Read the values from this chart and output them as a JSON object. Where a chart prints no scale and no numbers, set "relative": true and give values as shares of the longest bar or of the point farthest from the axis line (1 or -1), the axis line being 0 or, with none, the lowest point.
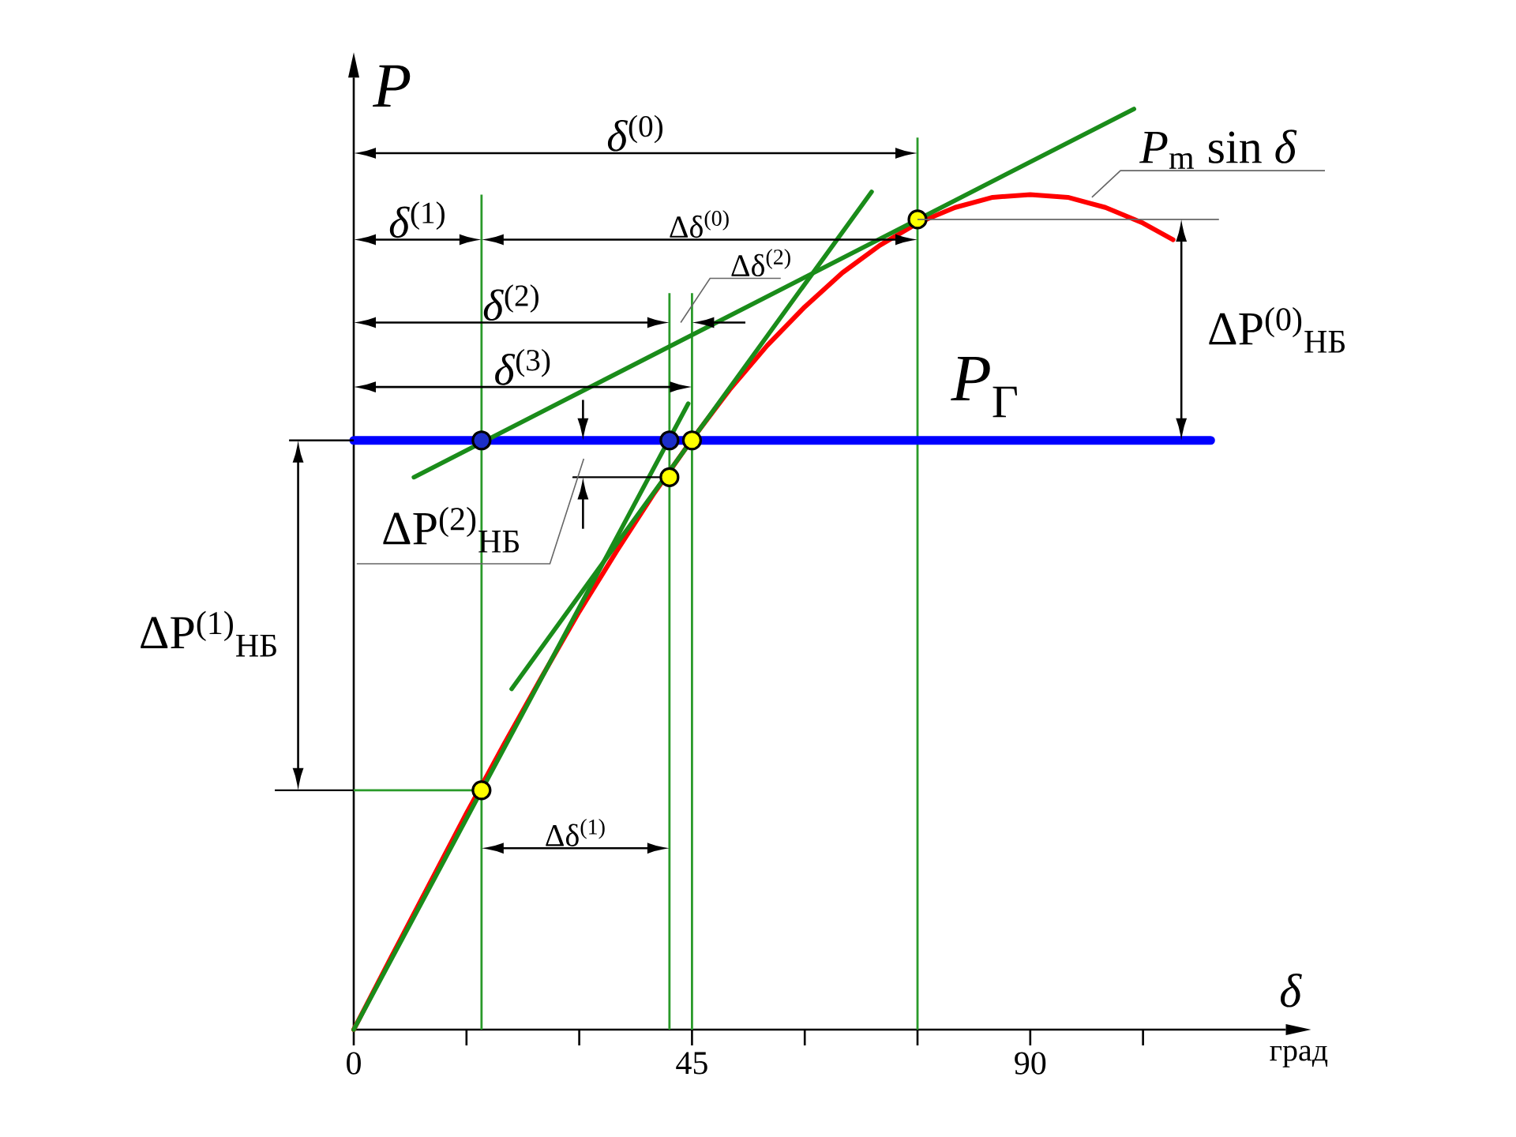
{
  "chart_data": {
    "type": "line",
    "relative": true,
    "xlabel": "δ",
    "ylabel": "P",
    "xlim": [
      0,
      124
    ],
    "xticks": [
      0,
      {
        "value": 15,
        "label": null
      },
      {
        "value": 30,
        "label": null
      },
      45,
      {
        "value": 60,
        "label": null
      },
      {
        "value": 75,
        "label": null
      },
      90,
      {
        "value": 105,
        "label": null
      }
    ],
    "series": [
      {
        "name": "*P*$_{m}$ sin *δ*",
        "color": "#ff0000",
        "x": [
          0,
          5,
          10,
          15,
          20,
          25,
          30,
          35,
          40,
          45,
          50,
          55,
          60,
          65,
          70,
          75,
          80,
          85,
          90,
          95,
          100,
          105,
          109
        ],
        "values": [
          0,
          0.079,
          0.157,
          0.235,
          0.31,
          0.383,
          0.454,
          0.52,
          0.583,
          0.641,
          0.695,
          0.743,
          0.785,
          0.822,
          0.852,
          0.876,
          0.893,
          0.904,
          0.907,
          0.904,
          0.893,
          0.876,
          0.858
        ]
      },
      {
        "name": "*P*$_{Г}$",
        "color": "#0000ff",
        "x": [
          0,
          114
        ],
        "values": [
          0.64,
          0.64
        ]
      },
      {
        "color": "#1a8c1a",
        "x": [
          8,
          103.8
        ],
        "values": [
          0.6,
          1
        ]
      },
      {
        "color": "#1a8c1a",
        "x": [
          0,
          44.5
        ],
        "values": [
          0,
          0.68
        ]
      },
      {
        "color": "#1a8c1a",
        "x": [
          21,
          68.9
        ],
        "values": [
          0.37,
          0.91
        ]
      },
      {
        "color": "#2a9a2a",
        "x": [
          0,
          17
        ],
        "values": [
          0.26,
          0.26
        ]
      },
      {
        "color": "#000000",
        "x": [
          29.2,
          42
        ],
        "values": [
          0.6,
          0.6
        ]
      },
      {
        "type": "scatter",
        "marker": "circle",
        "color": "#1c2ec8",
        "x": [
          17,
          42
        ],
        "values": [
          0.64,
          0.64
        ]
      },
      {
        "type": "scatter",
        "marker": "circle",
        "color": "#ffff00",
        "x": [
          75,
          17,
          42,
          45
        ],
        "values": [
          0.88,
          0.26,
          0.6,
          0.64
        ]
      }
    ],
    "ref_lines": [
      {
        "axis": "x",
        "value": 75,
        "color": "#2a9a2a"
      },
      {
        "axis": "x",
        "value": 17,
        "color": "#2a9a2a"
      },
      {
        "axis": "x",
        "value": 42,
        "color": "#2a9a2a"
      },
      {
        "axis": "x",
        "value": 45,
        "color": "#2a9a2a"
      }
    ],
    "annotations": [
      "*δ*$^{(0)}$",
      "*δ*$^{(1)}$",
      "*δ*$^{(2)}$",
      "*δ*$^{(3)}$",
      "Δδ$^{(0)}$",
      "Δδ$^{(1)}$",
      "Δδ$^{(2)}$",
      "ΔP$^{(0)}$$_{НБ}$",
      "ΔP$^{(1)}$$_{НБ}$",
      "ΔP$^{(2)}$$_{НБ}$",
      "град"
    ]
  }
}
